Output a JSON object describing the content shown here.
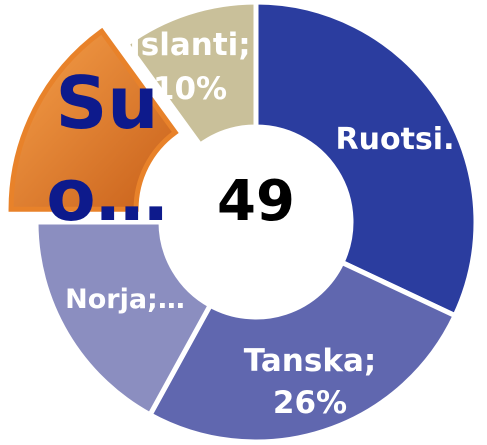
{
  "chart_data": {
    "type": "donut",
    "values": [
      32,
      26,
      17,
      15,
      10
    ],
    "value_labels": [
      "Ruotsi.",
      "Tanska;\n26%",
      "Norja;…",
      "Su\no…",
      "Islanti;\n10%"
    ],
    "colors": [
      "#2b3d9f",
      "#6067af",
      "#8b8ec0",
      "#e8822a",
      "#c9c09a"
    ],
    "exploded": [
      false,
      false,
      false,
      true,
      false
    ],
    "center_label": "49"
  }
}
